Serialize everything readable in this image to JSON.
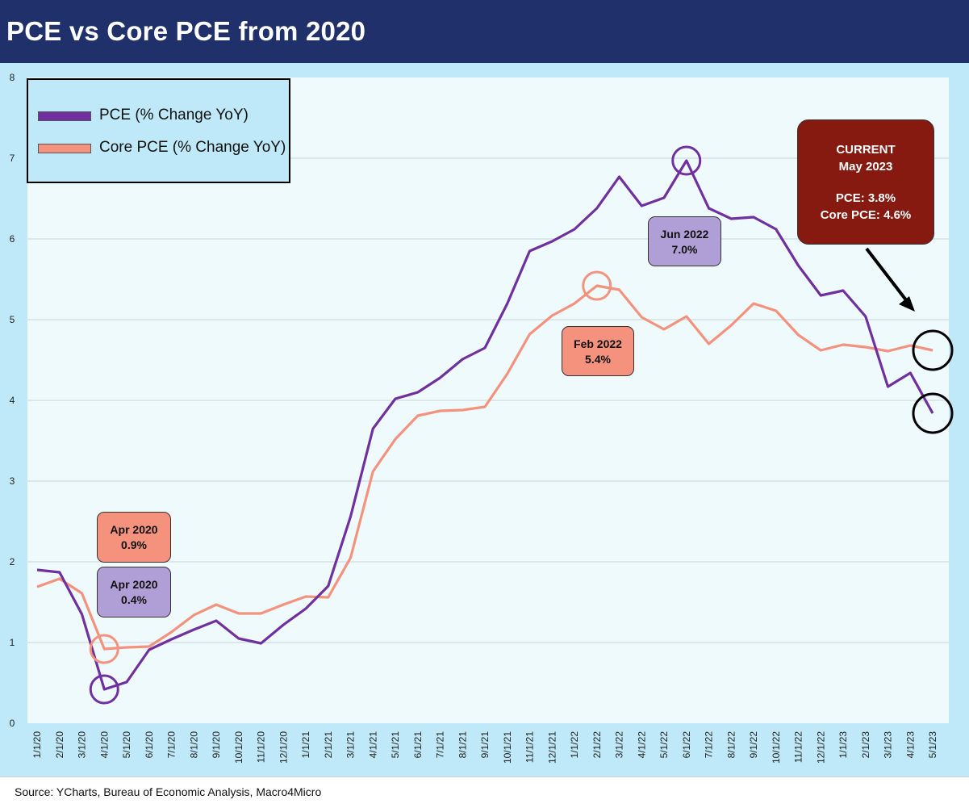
{
  "title": "PCE vs Core PCE from 2020",
  "source": "Source: YCharts, Bureau of Economic Analysis, Macro4Micro",
  "colors": {
    "pce": "#7030a0",
    "core_pce": "#f4927e",
    "title_bg": "#20306b",
    "panel_bg": "#bfe9f8",
    "current_box": "#861a10"
  },
  "legend": {
    "placement": "top-left",
    "items": [
      {
        "label": "PCE (% Change YoY)"
      },
      {
        "label": "Core PCE (% Change YoY)"
      }
    ]
  },
  "callouts": {
    "apr2020_core": {
      "date": "Apr 2020",
      "value": "0.9%"
    },
    "apr2020_pce": {
      "date": "Apr 2020",
      "value": "0.4%"
    },
    "feb2022_core": {
      "date": "Feb 2022",
      "value": "5.4%"
    },
    "jun2022_pce": {
      "date": "Jun 2022",
      "value": "7.0%"
    }
  },
  "current_box": {
    "line1": "CURRENT",
    "line2": "May 2023",
    "pce": "PCE: 3.8%",
    "core": "Core PCE: 4.6%"
  },
  "chart_data": {
    "type": "line",
    "title": "PCE vs Core PCE from 2020",
    "xlabel": "",
    "ylabel": "",
    "ylim": [
      0,
      8
    ],
    "yticks": [
      0,
      1,
      2,
      3,
      4,
      5,
      6,
      7,
      8
    ],
    "grid": true,
    "x": [
      "1/1/20",
      "2/1/20",
      "3/1/20",
      "4/1/20",
      "5/1/20",
      "6/1/20",
      "7/1/20",
      "8/1/20",
      "9/1/20",
      "10/1/20",
      "11/1/20",
      "12/1/20",
      "1/1/21",
      "2/1/21",
      "3/1/21",
      "4/1/21",
      "5/1/21",
      "6/1/21",
      "7/1/21",
      "8/1/21",
      "9/1/21",
      "10/1/21",
      "11/1/21",
      "12/1/21",
      "1/1/22",
      "2/1/22",
      "3/1/22",
      "4/1/22",
      "5/1/22",
      "6/1/22",
      "7/1/22",
      "8/1/22",
      "9/1/22",
      "10/1/22",
      "11/1/22",
      "12/1/22",
      "1/1/23",
      "2/1/23",
      "3/1/23",
      "4/1/23",
      "5/1/23"
    ],
    "series": [
      {
        "name": "PCE (% Change YoY)",
        "values": [
          1.9,
          1.87,
          1.35,
          0.42,
          0.51,
          0.91,
          1.04,
          1.16,
          1.27,
          1.05,
          0.99,
          1.22,
          1.42,
          1.7,
          2.56,
          3.65,
          4.02,
          4.1,
          4.28,
          4.51,
          4.65,
          5.2,
          5.85,
          5.97,
          6.12,
          6.38,
          6.77,
          6.41,
          6.51,
          6.97,
          6.38,
          6.25,
          6.27,
          6.12,
          5.67,
          5.3,
          5.36,
          5.04,
          4.17,
          4.34,
          3.84
        ]
      },
      {
        "name": "Core PCE (% Change YoY)",
        "values": [
          1.69,
          1.79,
          1.61,
          0.92,
          0.94,
          0.95,
          1.13,
          1.34,
          1.47,
          1.36,
          1.36,
          1.47,
          1.57,
          1.56,
          2.05,
          3.12,
          3.52,
          3.81,
          3.87,
          3.88,
          3.92,
          4.33,
          4.82,
          5.05,
          5.2,
          5.42,
          5.37,
          5.03,
          4.88,
          5.04,
          4.7,
          4.93,
          5.2,
          5.11,
          4.81,
          4.62,
          4.69,
          4.66,
          4.61,
          4.68,
          4.62
        ]
      }
    ],
    "highlights": [
      {
        "series": 0,
        "x": "4/1/20"
      },
      {
        "series": 1,
        "x": "4/1/20"
      },
      {
        "series": 1,
        "x": "2/1/22"
      },
      {
        "series": 0,
        "x": "6/1/22"
      },
      {
        "series": 1,
        "x": "5/1/23"
      },
      {
        "series": 0,
        "x": "5/1/23"
      }
    ]
  }
}
